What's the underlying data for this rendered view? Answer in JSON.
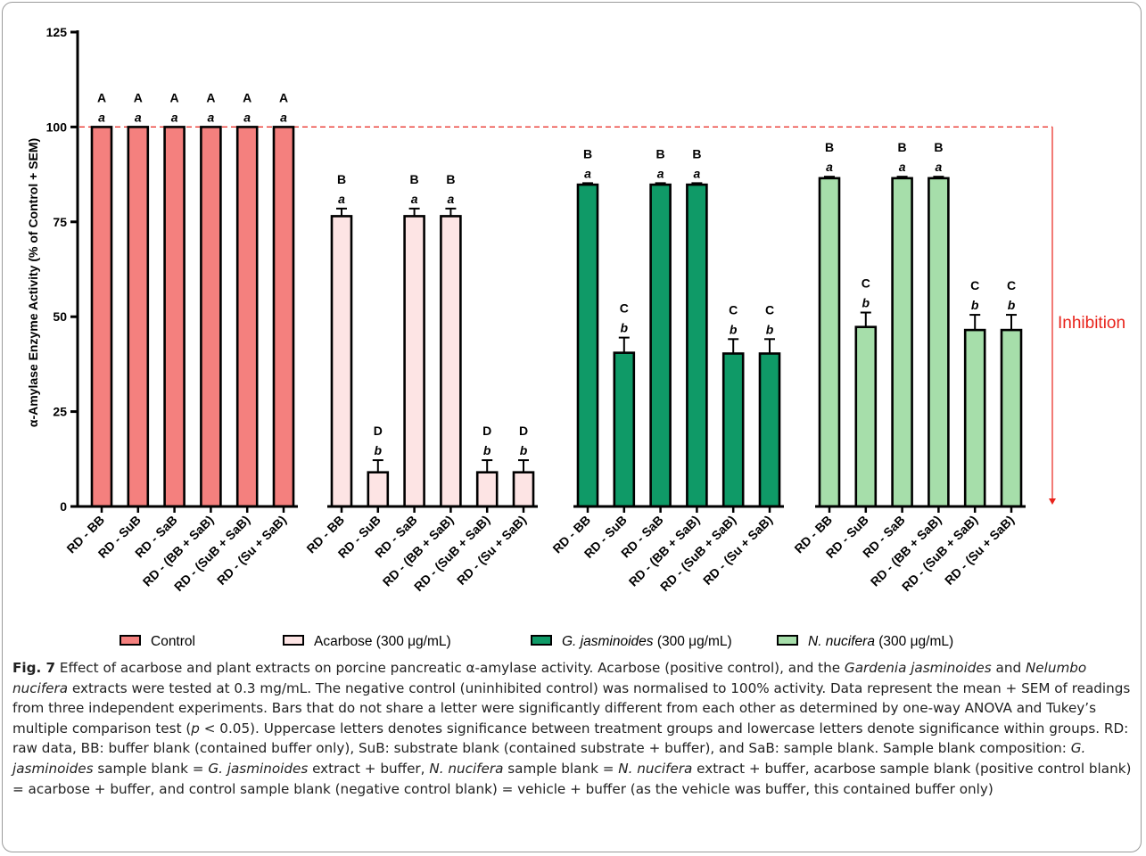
{
  "chart_data": {
    "type": "bar",
    "ylabel": "α-Amylase Enzyme Activity (% of Control + SEM)",
    "ylim": [
      0,
      125
    ],
    "yticks": [
      0,
      25,
      50,
      75,
      100,
      125
    ],
    "reference_line": {
      "value": 100,
      "color": "#e8231b"
    },
    "inhibition_label": "Inhibition",
    "inhibition_color": "#e8231b",
    "groups": [
      {
        "legend": {
          "text": "Control",
          "italic": "",
          "suffix": ""
        },
        "fill": "#f4807e",
        "categories": [
          "RD - BB",
          "RD - SuB",
          "RD - SaB",
          "RD - (BB + SaB)",
          "RD - (SuB + SaB)",
          "RD - (Su + SaB)"
        ],
        "values": [
          100,
          100,
          100,
          100,
          100,
          100
        ],
        "errors": [
          0,
          0,
          0,
          0,
          0,
          0
        ],
        "upper": [
          "A",
          "A",
          "A",
          "A",
          "A",
          "A"
        ],
        "lower": [
          "a",
          "a",
          "a",
          "a",
          "a",
          "a"
        ]
      },
      {
        "legend": {
          "text": "",
          "italic": "",
          "suffix": "Acarbose (300 μg/mL)"
        },
        "fill": "#fde4e4",
        "categories": [
          "RD - BB",
          "RD - SuB",
          "RD - SaB",
          "RD - (BB + SaB)",
          "RD - (SuB + SaB)",
          "RD - (Su + SaB)"
        ],
        "values": [
          76.5,
          9.0,
          76.5,
          76.5,
          9.0,
          9.0
        ],
        "errors": [
          2.0,
          3.2,
          2.0,
          2.0,
          3.2,
          3.2
        ],
        "upper": [
          "B",
          "D",
          "B",
          "B",
          "D",
          "D"
        ],
        "lower": [
          "a",
          "b",
          "a",
          "a",
          "b",
          "b"
        ]
      },
      {
        "legend": {
          "text": "",
          "italic": "G. jasminoides",
          "suffix": " (300 μg/mL)"
        },
        "fill": "#0f9a67",
        "categories": [
          "RD - BB",
          "RD - SuB",
          "RD - SaB",
          "RD - (BB + SaB)",
          "RD - (SuB + SaB)",
          "RD - (Su + SaB)"
        ],
        "values": [
          84.8,
          40.5,
          84.8,
          84.8,
          40.3,
          40.3
        ],
        "errors": [
          0.4,
          4.0,
          0.4,
          0.4,
          3.8,
          3.8
        ],
        "upper": [
          "B",
          "C",
          "B",
          "B",
          "C",
          "C"
        ],
        "lower": [
          "a",
          "b",
          "a",
          "a",
          "b",
          "b"
        ]
      },
      {
        "legend": {
          "text": "",
          "italic": "N. nucifera",
          "suffix": " (300 μg/mL)"
        },
        "fill": "#a6deaa",
        "categories": [
          "RD - BB",
          "RD - SuB",
          "RD - SaB",
          "RD - (BB + SaB)",
          "RD - (SuB + SaB)",
          "RD - (Su + SaB)"
        ],
        "values": [
          86.5,
          47.3,
          86.5,
          86.5,
          46.5,
          46.5
        ],
        "errors": [
          0.4,
          3.8,
          0.4,
          0.4,
          4.0,
          4.0
        ],
        "upper": [
          "B",
          "C",
          "B",
          "B",
          "C",
          "C"
        ],
        "lower": [
          "a",
          "b",
          "a",
          "a",
          "b",
          "b"
        ]
      }
    ]
  },
  "caption": {
    "fig_label": "Fig. 7",
    "s1": "  Effect of acarbose and plant extracts on porcine pancreatic α-amylase activity. Acarbose (positive control), and the ",
    "s1_it": "Gardenia jasminoides",
    "s2": " and ",
    "s2_it": "Nelumbo nucifera",
    "s3": " extracts were tested at 0.3 mg/mL. The negative control (uninhibited control) was normalised to 100% activity. Data represent the mean + SEM of readings from three independent experiments. Bars that do not share a letter were significantly different from each other as determined by one-way ANOVA and Tukey’s multiple comparison test (",
    "s3_it": "p",
    "s4": " < 0.05). Uppercase letters denotes significance between treatment groups and lowercase letters denote significance within groups. RD: raw data, BB: buffer blank (contained buffer only), SuB: substrate blank (contained substrate + buffer), and SaB: sample blank. Sample blank composition: ",
    "s4_it": "G. jasminoides",
    "s5": " sample blank = ",
    "s5_it": "G. jasminoides",
    "s6": " extract + buffer, ",
    "s6_it": "N. nucifera",
    "s7": " sample blank = ",
    "s7_it": "N. nucifera",
    "s8": " extract + buffer, acarbose sample blank (positive control blank) = acarbose + buffer, and control sample blank (negative control blank) = vehicle + buffer (as the vehicle was buffer, this contained buffer only)"
  }
}
